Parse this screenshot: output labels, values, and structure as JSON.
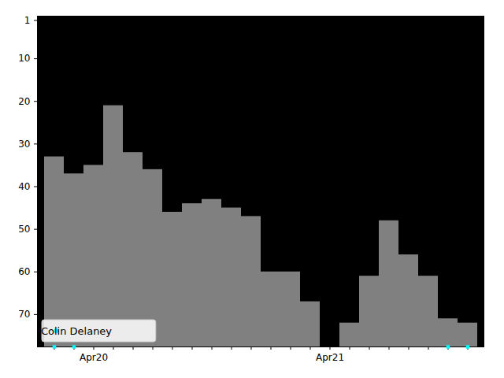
{
  "chart_data": {
    "type": "bar",
    "categories": [
      null,
      null,
      "Apr20",
      null,
      null,
      null,
      null,
      null,
      null,
      null,
      null,
      null,
      null,
      null,
      "Apr21",
      null,
      null,
      null,
      null,
      null,
      null,
      null
    ],
    "values": [
      33,
      37,
      35,
      21,
      32,
      36,
      46,
      44,
      43,
      45,
      47,
      60,
      60,
      67,
      null,
      72,
      61,
      48,
      56,
      61,
      71,
      72
    ],
    "color": "#808080",
    "series": [
      {
        "name": "Colin Delaney",
        "type": "scatter",
        "color": "#00ffff",
        "marker": "square",
        "values": [
          77.6,
          77.6,
          null,
          null,
          null,
          null,
          null,
          null,
          null,
          null,
          null,
          null,
          null,
          null,
          null,
          null,
          null,
          null,
          null,
          null,
          77.6,
          77.6
        ]
      }
    ],
    "ylim": [
      0,
      77.6
    ],
    "yticks": [
      1,
      10,
      20,
      30,
      40,
      50,
      60,
      70
    ],
    "legend": "lower left"
  }
}
